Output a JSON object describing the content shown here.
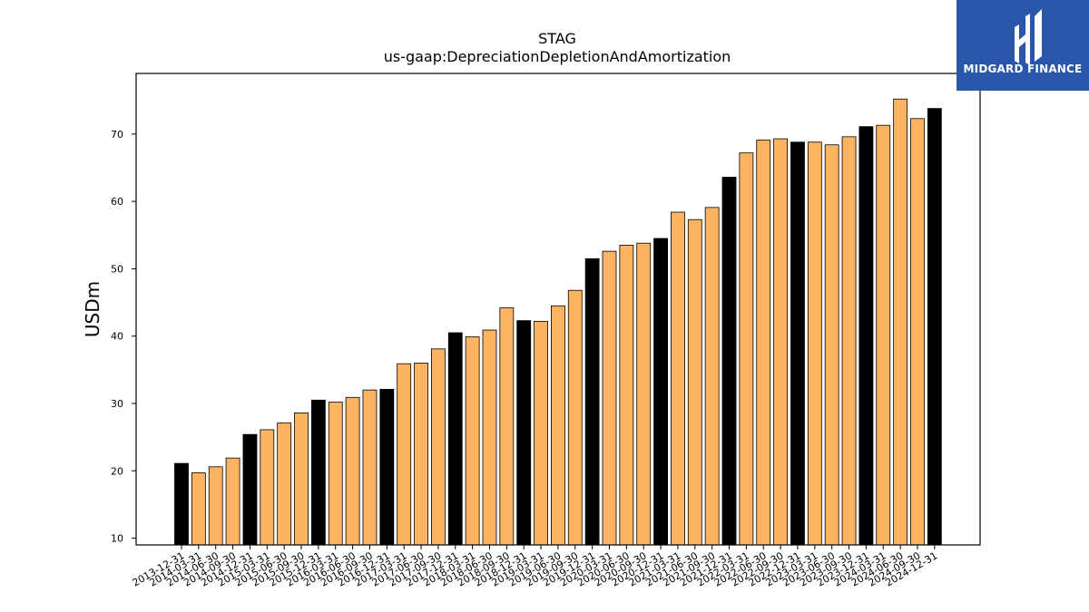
{
  "brand": {
    "name": "MIDGARD FINANCE",
    "bg_color": "#2b57aa"
  },
  "chart_data": {
    "type": "bar",
    "title": "STAG",
    "subtitle": "us-gaap:DepreciationDepletionAndAmortization",
    "ylabel": "USDm",
    "xlabel": "",
    "ylim": [
      9,
      79
    ],
    "yticks": [
      10,
      20,
      30,
      40,
      50,
      60,
      70
    ],
    "grid": false,
    "colors": {
      "annual": "#000000",
      "quarterly": "#fdb462",
      "edge": "#000000"
    },
    "categories": [
      "2013-12-31",
      "2014-03-31",
      "2014-06-30",
      "2014-09-30",
      "2014-12-31",
      "2015-03-31",
      "2015-06-30",
      "2015-09-30",
      "2015-12-31",
      "2016-03-31",
      "2016-06-30",
      "2016-09-30",
      "2016-12-31",
      "2017-03-31",
      "2017-06-30",
      "2017-09-30",
      "2017-12-31",
      "2018-03-31",
      "2018-06-30",
      "2018-09-30",
      "2018-12-31",
      "2019-03-31",
      "2019-06-30",
      "2019-09-30",
      "2019-12-31",
      "2020-03-31",
      "2020-06-30",
      "2020-09-30",
      "2020-12-31",
      "2021-03-31",
      "2021-06-30",
      "2021-09-30",
      "2021-12-31",
      "2022-03-31",
      "2022-06-30",
      "2022-09-30",
      "2022-12-31",
      "2023-03-31",
      "2023-06-30",
      "2023-09-30",
      "2023-12-31",
      "2024-03-31",
      "2024-06-30",
      "2024-09-30",
      "2024-12-31"
    ],
    "values": [
      21.1,
      19.7,
      20.6,
      21.9,
      25.4,
      26.1,
      27.1,
      28.6,
      30.5,
      30.2,
      30.9,
      32.0,
      32.1,
      35.9,
      36.0,
      38.1,
      40.5,
      39.9,
      40.9,
      44.2,
      42.3,
      42.2,
      44.5,
      46.8,
      51.5,
      52.6,
      53.5,
      53.8,
      54.5,
      58.4,
      57.3,
      59.1,
      63.6,
      67.2,
      69.1,
      69.3,
      68.8,
      68.8,
      68.4,
      69.6,
      71.1,
      71.3,
      75.2,
      72.3,
      73.8
    ],
    "annual_flags": [
      true,
      false,
      false,
      false,
      true,
      false,
      false,
      false,
      true,
      false,
      false,
      false,
      true,
      false,
      false,
      false,
      true,
      false,
      false,
      false,
      true,
      false,
      false,
      false,
      true,
      false,
      false,
      false,
      true,
      false,
      false,
      false,
      true,
      false,
      false,
      false,
      true,
      false,
      false,
      false,
      true,
      false,
      false,
      false,
      true
    ]
  }
}
